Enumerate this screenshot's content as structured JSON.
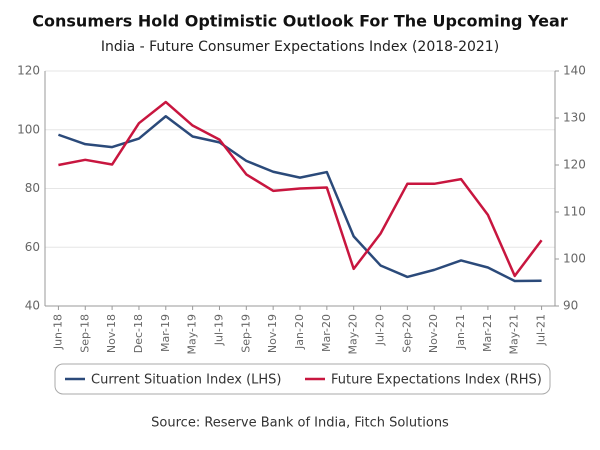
{
  "chart_data": {
    "type": "line",
    "title": "Consumers Hold Optimistic Outlook For The Upcoming Year",
    "subtitle": "India - Future Consumer Expectations Index (2018-2021)",
    "source": "Source: Reserve Bank of India, Fitch Solutions",
    "categories": [
      "Jun-18",
      "Sep-18",
      "Nov-18",
      "Dec-18",
      "Mar-19",
      "May-19",
      "Jul-19",
      "Sep-19",
      "Nov-19",
      "Jan-20",
      "Mar-20",
      "May-20",
      "Jul-20",
      "Sep-20",
      "Nov-20",
      "Jan-21",
      "Mar-21",
      "May-21",
      "Jul-21"
    ],
    "series": [
      {
        "name": "Current Situation Index (LHS)",
        "color": "#2b4a7a",
        "axis": "y",
        "values": [
          98.3,
          95.1,
          94.1,
          97.0,
          104.6,
          97.7,
          95.7,
          89.4,
          85.7,
          83.7,
          85.6,
          63.7,
          53.8,
          49.9,
          52.3,
          55.5,
          53.1,
          48.5,
          48.6
        ]
      },
      {
        "name": "Future Expectations Index (RHS)",
        "color": "#c8163f",
        "axis": "y2",
        "values": [
          120.0,
          121.1,
          120.1,
          128.9,
          133.4,
          128.4,
          125.4,
          118.0,
          114.5,
          115.0,
          115.2,
          97.9,
          105.4,
          116.0,
          116.0,
          117.0,
          109.4,
          96.4,
          104.0
        ]
      }
    ],
    "ylim": [
      40,
      120
    ],
    "yticks": [
      40,
      60,
      80,
      100,
      120
    ],
    "y2lim": [
      90,
      140
    ],
    "y2ticks": [
      90,
      100,
      110,
      120,
      130,
      140
    ],
    "grid": true
  }
}
